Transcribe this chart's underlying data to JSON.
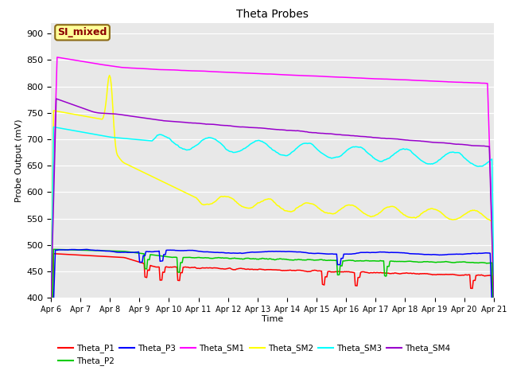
{
  "title": "Theta Probes",
  "xlabel": "Time",
  "ylabel": "Probe Output (mV)",
  "ylim": [
    400,
    920
  ],
  "yticks": [
    400,
    450,
    500,
    550,
    600,
    650,
    700,
    750,
    800,
    850,
    900
  ],
  "x_labels": [
    "Apr 6",
    "Apr 7",
    "Apr 8",
    "Apr 9",
    "Apr 10",
    "Apr 11",
    "Apr 12",
    "Apr 13",
    "Apr 14",
    "Apr 15",
    "Apr 16",
    "Apr 17",
    "Apr 18",
    "Apr 19",
    "Apr 20",
    "Apr 21"
  ],
  "annotation_text": "SI_mixed",
  "annotation_color": "#8B0000",
  "annotation_bg": "#FFFF99",
  "annotation_border": "#8B6914",
  "series_colors": {
    "Theta_P1": "#FF0000",
    "Theta_P2": "#00CC00",
    "Theta_P3": "#0000FF",
    "Theta_SM1": "#FF00FF",
    "Theta_SM2": "#FFFF00",
    "Theta_SM3": "#00FFFF",
    "Theta_SM4": "#9900CC"
  },
  "bg_color": "#E8E8E8",
  "fig_bg": "#FFFFFF",
  "n_points": 500
}
